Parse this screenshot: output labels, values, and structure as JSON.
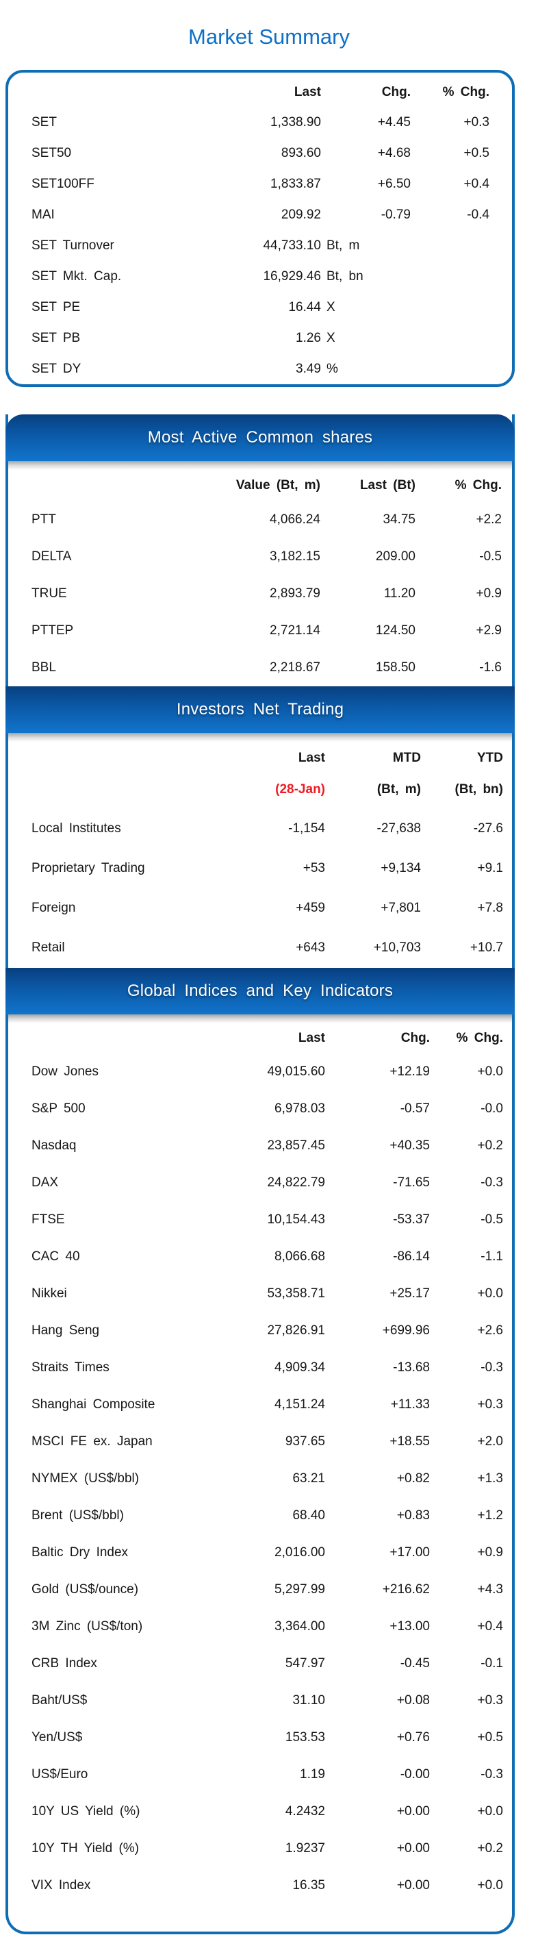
{
  "title": "Market Summary",
  "colors": {
    "accent_blue": "#0f6db6",
    "title_blue": "#0d70c6",
    "banner_blue_top": "#083f7f",
    "banner_blue_bottom": "#1174cb",
    "date_red": "#ec1c24",
    "text": "#161616"
  },
  "market_summary": {
    "headers": [
      "Last",
      "Chg.",
      "% Chg."
    ],
    "rows": [
      {
        "label": "SET",
        "last": "1,338.90",
        "unit": "",
        "chg": "+4.45",
        "pchg": "+0.3"
      },
      {
        "label": "SET50",
        "last": "893.60",
        "unit": "",
        "chg": "+4.68",
        "pchg": "+0.5"
      },
      {
        "label": "SET100FF",
        "last": "1,833.87",
        "unit": "",
        "chg": "+6.50",
        "pchg": "+0.4"
      },
      {
        "label": "MAI",
        "last": "209.92",
        "unit": "",
        "chg": "-0.79",
        "pchg": "-0.4"
      },
      {
        "label": "SET Turnover",
        "last": "44,733.10",
        "unit": "Bt, m",
        "chg": "",
        "pchg": ""
      },
      {
        "label": "SET Mkt. Cap.",
        "last": "16,929.46",
        "unit": "Bt, bn",
        "chg": "",
        "pchg": ""
      },
      {
        "label": "SET PE",
        "last": "16.44",
        "unit": "X",
        "chg": "",
        "pchg": ""
      },
      {
        "label": "SET PB",
        "last": "1.26",
        "unit": "X",
        "chg": "",
        "pchg": ""
      },
      {
        "label": "SET DY",
        "last": "3.49",
        "unit": "%",
        "chg": "",
        "pchg": ""
      }
    ]
  },
  "most_active": {
    "banner": "Most Active Common shares",
    "headers": [
      "Value (Bt, m)",
      "Last (Bt)",
      "% Chg."
    ],
    "rows": [
      [
        "PTT",
        "4,066.24",
        "34.75",
        "+2.2"
      ],
      [
        "DELTA",
        "3,182.15",
        "209.00",
        "-0.5"
      ],
      [
        "TRUE",
        "2,893.79",
        "11.20",
        "+0.9"
      ],
      [
        "PTTEP",
        "2,721.14",
        "124.50",
        "+2.9"
      ],
      [
        "BBL",
        "2,218.67",
        "158.50",
        "-1.6"
      ]
    ]
  },
  "investors": {
    "banner": "Investors Net Trading",
    "headers": [
      "Last",
      "MTD",
      "YTD"
    ],
    "subheaders": [
      "(28-Jan)",
      "(Bt, m)",
      "(Bt, bn)"
    ],
    "rows": [
      [
        "Local Institutes",
        "-1,154",
        "-27,638",
        "-27.6"
      ],
      [
        "Proprietary Trading",
        "+53",
        "+9,134",
        "+9.1"
      ],
      [
        "Foreign",
        "+459",
        "+7,801",
        "+7.8"
      ],
      [
        "Retail",
        "+643",
        "+10,703",
        "+10.7"
      ]
    ]
  },
  "global_indices": {
    "banner": "Global Indices and Key Indicators",
    "headers": [
      "Last",
      "Chg.",
      "% Chg."
    ],
    "rows": [
      [
        "Dow Jones",
        "49,015.60",
        "+12.19",
        "+0.0"
      ],
      [
        "S&P 500",
        "6,978.03",
        "-0.57",
        "-0.0"
      ],
      [
        "Nasdaq",
        "23,857.45",
        "+40.35",
        "+0.2"
      ],
      [
        "DAX",
        "24,822.79",
        "-71.65",
        "-0.3"
      ],
      [
        "FTSE",
        "10,154.43",
        "-53.37",
        "-0.5"
      ],
      [
        "CAC 40",
        "8,066.68",
        "-86.14",
        "-1.1"
      ],
      [
        "Nikkei",
        "53,358.71",
        "+25.17",
        "+0.0"
      ],
      [
        "Hang Seng",
        "27,826.91",
        "+699.96",
        "+2.6"
      ],
      [
        "Straits Times",
        "4,909.34",
        "-13.68",
        "-0.3"
      ],
      [
        "Shanghai Composite",
        "4,151.24",
        "+11.33",
        "+0.3"
      ],
      [
        "MSCI FE ex. Japan",
        "937.65",
        "+18.55",
        "+2.0"
      ],
      [
        "NYMEX (US$/bbl)",
        "63.21",
        "+0.82",
        "+1.3"
      ],
      [
        "Brent (US$/bbl)",
        "68.40",
        "+0.83",
        "+1.2"
      ],
      [
        "Baltic Dry Index",
        "2,016.00",
        "+17.00",
        "+0.9"
      ],
      [
        "Gold (US$/ounce)",
        "5,297.99",
        "+216.62",
        "+4.3"
      ],
      [
        "3M Zinc (US$/ton)",
        "3,364.00",
        "+13.00",
        "+0.4"
      ],
      [
        "CRB Index",
        "547.97",
        "-0.45",
        "-0.1"
      ],
      [
        "Baht/US$",
        "31.10",
        "+0.08",
        "+0.3"
      ],
      [
        "Yen/US$",
        "153.53",
        "+0.76",
        "+0.5"
      ],
      [
        "US$/Euro",
        "1.19",
        "-0.00",
        "-0.3"
      ],
      [
        "10Y US Yield (%)",
        "4.2432",
        "+0.00",
        "+0.0"
      ],
      [
        "10Y TH Yield (%)",
        "1.9237",
        "+0.00",
        "+0.2"
      ],
      [
        "VIX Index",
        "16.35",
        "+0.00",
        "+0.0"
      ]
    ]
  }
}
